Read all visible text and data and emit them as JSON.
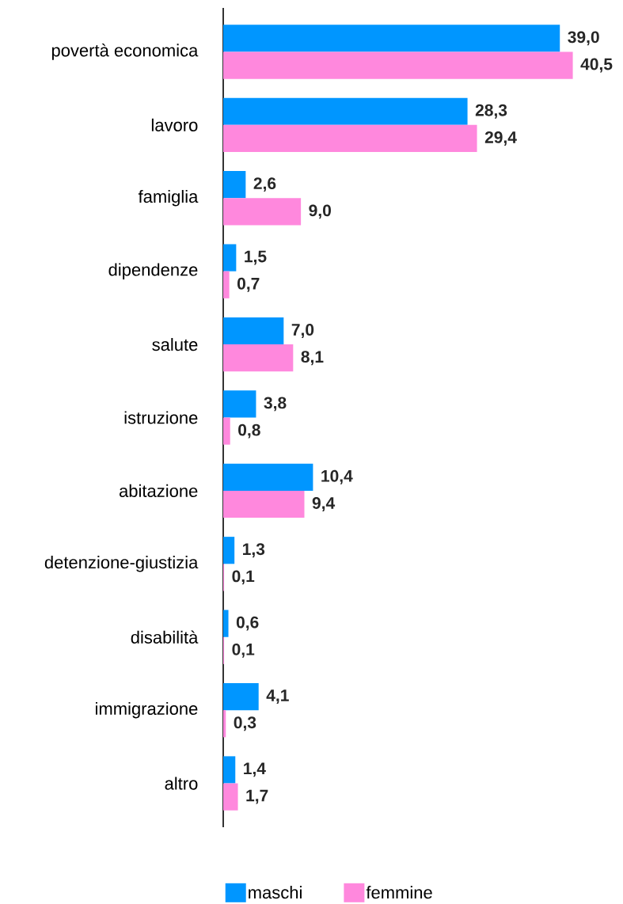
{
  "chart_data": {
    "type": "bar",
    "orientation": "horizontal",
    "legend": "bottom",
    "categories": [
      "povertà economica",
      "lavoro",
      "famiglia",
      "dipendenze",
      "salute",
      "istruzione",
      "abitazione",
      "detenzione-giustizia",
      "disabilità",
      "immigrazione",
      "altro"
    ],
    "series": [
      {
        "name": "maschi",
        "color": "#0096ff",
        "values": [
          39.0,
          28.3,
          2.6,
          1.5,
          7.0,
          3.8,
          10.4,
          1.3,
          0.6,
          4.1,
          1.4
        ],
        "value_labels": [
          "39,0",
          "28,3",
          "2,6",
          "1,5",
          "7,0",
          "3,8",
          "10,4",
          "1,3",
          "0,6",
          "4,1",
          "1,4"
        ]
      },
      {
        "name": "femmine",
        "color": "#ff88dd",
        "values": [
          40.5,
          29.4,
          9.0,
          0.7,
          8.1,
          0.8,
          9.4,
          0.1,
          0.1,
          0.3,
          1.7
        ],
        "value_labels": [
          "40,5",
          "29,4",
          "9,0",
          "0,7",
          "8,1",
          "0,8",
          "9,4",
          "0,1",
          "0,1",
          "0,3",
          "1,7"
        ]
      }
    ]
  }
}
